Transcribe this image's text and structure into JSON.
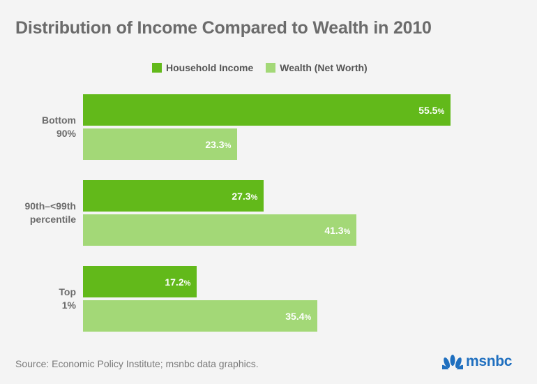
{
  "chart_data": {
    "type": "bar",
    "orientation": "horizontal",
    "title": "Distribution of Income Compared to Wealth in 2010",
    "categories": [
      [
        "Bottom",
        "90%"
      ],
      [
        "90th–<99th",
        "percentile"
      ],
      [
        "Top",
        "1%"
      ]
    ],
    "series": [
      {
        "name": "Household Income",
        "color": "#62b91a",
        "values": [
          55.5,
          27.3,
          17.2
        ]
      },
      {
        "name": "Wealth (Net Worth)",
        "color": "#a3d877",
        "values": [
          23.3,
          41.3,
          35.4
        ]
      }
    ],
    "value_suffix": "%",
    "xlim": [
      0,
      65
    ],
    "grid": false,
    "legend_position": "top"
  },
  "footer": {
    "source": "Source: Economic Policy Institute; msnbc data graphics.",
    "logo_text": "msnbc",
    "logo_icon": "peacock-icon"
  }
}
